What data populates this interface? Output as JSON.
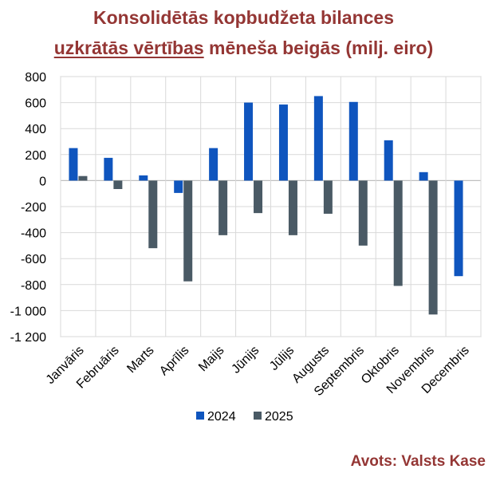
{
  "title_line1": "Konsolidētās kopbudžeta bilances",
  "title_line2_underlined": "uzkrātās vērtības",
  "title_line2_rest": " mēneša beigās (milj. eiro)",
  "source": "Avots: Valsts Kase",
  "colors": {
    "title": "#943634",
    "series_2024": "#0f55be",
    "series_2025": "#4a5a65",
    "grid": "#d9d9d9",
    "axis": "#bfbfbf"
  },
  "chart_data": {
    "type": "bar",
    "title": "Konsolidētās kopbudžeta bilances uzkrātās vērtības mēneša beigās (milj. eiro)",
    "xlabel": "",
    "ylabel": "",
    "ylim": [
      -1200,
      800
    ],
    "yticks": [
      800,
      600,
      400,
      200,
      0,
      -200,
      -400,
      -600,
      -800,
      -1000,
      -1200
    ],
    "ytick_labels": [
      "800",
      "600",
      "400",
      "200",
      "0",
      "-200",
      "-400",
      "-600",
      "-800",
      "-1 000",
      "-1 200"
    ],
    "categories": [
      "Janvāris",
      "Februāris",
      "Marts",
      "Aprīlis",
      "Maijs",
      "Jūnijs",
      "Jūlijs",
      "Augusts",
      "Septembris",
      "Oktobris",
      "Novembris",
      "Decembris"
    ],
    "series": [
      {
        "name": "2024",
        "values": [
          250,
          175,
          40,
          -95,
          250,
          600,
          585,
          650,
          605,
          310,
          65,
          -735
        ]
      },
      {
        "name": "2025",
        "values": [
          35,
          -65,
          -520,
          -775,
          -420,
          -250,
          -420,
          -255,
          -500,
          -810,
          -1030,
          null
        ]
      }
    ],
    "legend_position": "bottom"
  }
}
